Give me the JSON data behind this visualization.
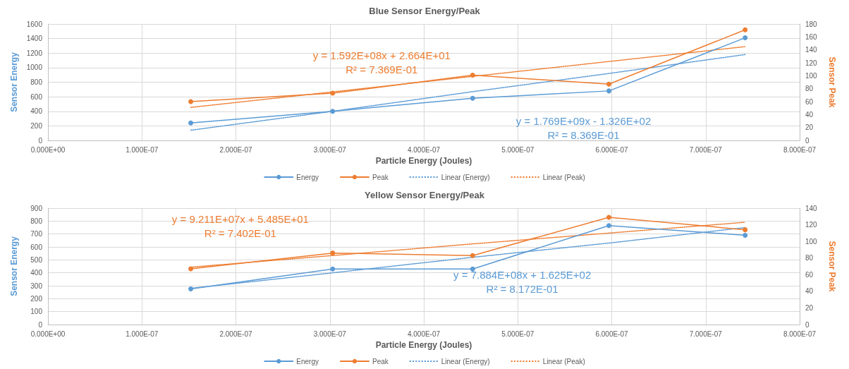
{
  "chart_data": [
    {
      "type": "line",
      "title": "Blue Sensor Energy/Peak",
      "xlabel": "Particle Energy (Joules)",
      "ylabel": "Sensor Energy",
      "y2label": "Sensor Peak",
      "x": [
        1.52e-07,
        3.03e-07,
        4.52e-07,
        5.97e-07,
        7.42e-07
      ],
      "series": [
        {
          "name": "Energy",
          "color": "#5b9bd5",
          "values": [
            240,
            400,
            580,
            680,
            1410
          ]
        },
        {
          "name": "Peak",
          "color": "#ed7d31",
          "axis": "y2",
          "values": [
            60,
            73,
            101,
            87,
            171
          ]
        },
        {
          "name": "Linear (Energy)",
          "color": "#5b9bd5",
          "values": [
            140,
            400,
            670,
            920,
            1180
          ],
          "line_style": "dotted",
          "marker": "none"
        },
        {
          "name": "Linear (Peak)",
          "color": "#ed7d31",
          "axis": "y2",
          "values": [
            51,
            75,
            99,
            122,
            145
          ],
          "line_style": "dotted",
          "marker": "none"
        }
      ],
      "annotations": [
        "y = 1.769E+09x - 1.326E+02\nR² = 8.369E-01",
        "y = 1.592E+08x + 2.664E+01\nR² = 7.369E-01"
      ],
      "marker": "circle",
      "line_style": "solid",
      "grid": true,
      "legend": "bottom",
      "xlim": [
        0,
        8e-07
      ],
      "xticks": [
        {
          "value": 0,
          "label": "0.000E+00"
        },
        {
          "value": 1e-07,
          "label": "1.000E-07"
        },
        {
          "value": 2e-07,
          "label": "2.000E-07"
        },
        {
          "value": 3e-07,
          "label": "3.000E-07"
        },
        {
          "value": 4e-07,
          "label": "4.000E-07"
        },
        {
          "value": 5e-07,
          "label": "5.000E-07"
        },
        {
          "value": 6e-07,
          "label": "6.000E-07"
        },
        {
          "value": 7e-07,
          "label": "7.000E-07"
        },
        {
          "value": 8e-07,
          "label": "8.000E-07"
        }
      ],
      "ylim": [
        0,
        1600
      ],
      "yticks": [
        0,
        200,
        400,
        600,
        800,
        1000,
        1200,
        1400,
        1600
      ],
      "y2lim": [
        0,
        180
      ],
      "y2ticks": [
        0,
        20,
        40,
        60,
        80,
        100,
        120,
        140,
        160,
        180
      ]
    },
    {
      "type": "line",
      "title": "Yellow Sensor Energy/Peak",
      "xlabel": "Particle Energy (Joules)",
      "ylabel": "Sensor Energy",
      "y2label": "Sensor Peak",
      "x": [
        1.52e-07,
        3.03e-07,
        4.52e-07,
        5.97e-07,
        7.42e-07
      ],
      "series": [
        {
          "name": "Energy",
          "color": "#5b9bd5",
          "values": [
            275,
            430,
            430,
            765,
            690
          ]
        },
        {
          "name": "Peak",
          "color": "#ed7d31",
          "axis": "y2",
          "values": [
            67,
            86,
            83,
            129,
            114
          ]
        },
        {
          "name": "Linear (Energy)",
          "color": "#5b9bd5",
          "values": [
            280,
            400,
            520,
            630,
            750
          ],
          "line_style": "dotted",
          "marker": "none"
        },
        {
          "name": "Linear (Peak)",
          "color": "#ed7d31",
          "axis": "y2",
          "values": [
            69,
            83,
            97,
            110,
            123
          ],
          "line_style": "dotted",
          "marker": "none"
        }
      ],
      "annotations": [
        "y = 7.884E+08x + 1.625E+02\nR² = 8.172E-01",
        "y = 9.211E+07x + 5.485E+01\nR² = 7.402E-01"
      ],
      "marker": "circle",
      "line_style": "solid",
      "grid": true,
      "legend": "bottom",
      "xlim": [
        0,
        8e-07
      ],
      "xticks": [
        {
          "value": 0,
          "label": "0.000E+00"
        },
        {
          "value": 1e-07,
          "label": "1.000E-07"
        },
        {
          "value": 2e-07,
          "label": "2.000E-07"
        },
        {
          "value": 3e-07,
          "label": "3.000E-07"
        },
        {
          "value": 4e-07,
          "label": "4.000E-07"
        },
        {
          "value": 5e-07,
          "label": "5.000E-07"
        },
        {
          "value": 6e-07,
          "label": "6.000E-07"
        },
        {
          "value": 7e-07,
          "label": "7.000E-07"
        },
        {
          "value": 8e-07,
          "label": "8.000E-07"
        }
      ],
      "ylim": [
        0,
        900
      ],
      "yticks": [
        0,
        100,
        200,
        300,
        400,
        500,
        600,
        700,
        800,
        900
      ],
      "y2lim": [
        0,
        140
      ],
      "y2ticks": [
        0,
        20,
        40,
        60,
        80,
        100,
        120,
        140
      ]
    }
  ]
}
